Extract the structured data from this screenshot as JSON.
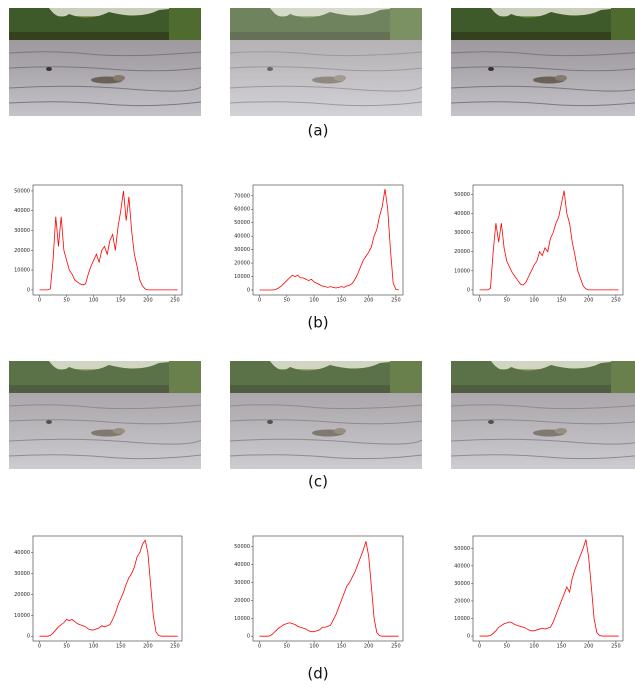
{
  "labels": [
    "(a)",
    "(b)",
    "(c)",
    "(d)"
  ],
  "chart_data": [
    {
      "type": "line",
      "color": "#ff0000",
      "x": [
        0,
        5,
        10,
        15,
        20,
        25,
        30,
        35,
        40,
        45,
        50,
        55,
        60,
        65,
        70,
        75,
        80,
        85,
        90,
        95,
        100,
        105,
        110,
        115,
        120,
        125,
        130,
        135,
        140,
        145,
        150,
        155,
        160,
        165,
        170,
        175,
        180,
        185,
        190,
        195,
        200,
        205,
        210,
        215,
        220,
        225,
        230,
        235,
        240,
        245,
        250,
        255
      ],
      "values": [
        0,
        0,
        0,
        0,
        500,
        15000,
        37000,
        22000,
        37000,
        20000,
        15000,
        10000,
        8000,
        5000,
        4000,
        3000,
        2500,
        3000,
        8000,
        12000,
        15000,
        18000,
        14000,
        20000,
        22000,
        18000,
        25000,
        28000,
        20000,
        32000,
        40000,
        50000,
        35000,
        47000,
        30000,
        18000,
        12000,
        5000,
        2000,
        500,
        0,
        0,
        0,
        0,
        0,
        0,
        0,
        0,
        0,
        0,
        0,
        0
      ],
      "xlim": [
        -12,
        263
      ],
      "xticks": [
        0,
        50,
        100,
        150,
        200,
        250
      ],
      "ylim": [
        -2600,
        53000
      ],
      "yticks": [
        0,
        10000,
        20000,
        30000,
        40000,
        50000
      ]
    },
    {
      "type": "line",
      "color": "#ff0000",
      "x": [
        0,
        5,
        10,
        15,
        20,
        25,
        30,
        35,
        40,
        45,
        50,
        55,
        60,
        65,
        70,
        75,
        80,
        85,
        90,
        95,
        100,
        105,
        110,
        115,
        120,
        125,
        130,
        135,
        140,
        145,
        150,
        155,
        160,
        165,
        170,
        175,
        180,
        185,
        190,
        195,
        200,
        205,
        210,
        215,
        220,
        225,
        230,
        235,
        240,
        245,
        250,
        255
      ],
      "values": [
        0,
        0,
        0,
        0,
        0,
        0,
        500,
        1500,
        3000,
        5000,
        7000,
        9000,
        11000,
        10000,
        11000,
        9000,
        9000,
        8000,
        7000,
        8000,
        6000,
        5000,
        4000,
        3000,
        2500,
        2000,
        2500,
        2000,
        1500,
        2000,
        2500,
        2000,
        3000,
        3500,
        5000,
        8000,
        12000,
        17000,
        22000,
        25000,
        28000,
        32000,
        40000,
        45000,
        55000,
        62000,
        75000,
        60000,
        30000,
        5000,
        500,
        0
      ],
      "xlim": [
        -12,
        263
      ],
      "xticks": [
        0,
        50,
        100,
        150,
        200,
        250
      ],
      "ylim": [
        -3700,
        78000
      ],
      "yticks": [
        0,
        10000,
        20000,
        30000,
        40000,
        50000,
        60000,
        70000
      ]
    },
    {
      "type": "line",
      "color": "#ff0000",
      "x": [
        0,
        5,
        10,
        15,
        20,
        25,
        30,
        35,
        40,
        45,
        50,
        55,
        60,
        65,
        70,
        75,
        80,
        85,
        90,
        95,
        100,
        105,
        110,
        115,
        120,
        125,
        130,
        135,
        140,
        145,
        150,
        155,
        160,
        165,
        170,
        175,
        180,
        185,
        190,
        195,
        200,
        205,
        210,
        215,
        220,
        225,
        230,
        235,
        240,
        245,
        250,
        255
      ],
      "values": [
        0,
        0,
        0,
        0,
        800,
        20000,
        35000,
        25000,
        35000,
        22000,
        15000,
        12000,
        9000,
        7000,
        5000,
        3000,
        2500,
        4000,
        7000,
        10000,
        13000,
        15000,
        20000,
        18000,
        22000,
        20000,
        27000,
        30000,
        35000,
        38000,
        45000,
        52000,
        40000,
        35000,
        25000,
        18000,
        10000,
        6000,
        2000,
        500,
        0,
        0,
        0,
        0,
        0,
        0,
        0,
        0,
        0,
        0,
        0,
        0
      ],
      "xlim": [
        -12,
        263
      ],
      "xticks": [
        0,
        50,
        100,
        150,
        200,
        250
      ],
      "ylim": [
        -2700,
        55000
      ],
      "yticks": [
        0,
        10000,
        20000,
        30000,
        40000,
        50000
      ]
    },
    {
      "type": "line",
      "color": "#ff0000",
      "x": [
        0,
        5,
        10,
        15,
        20,
        25,
        30,
        35,
        40,
        45,
        50,
        55,
        60,
        65,
        70,
        75,
        80,
        85,
        90,
        95,
        100,
        105,
        110,
        115,
        120,
        125,
        130,
        135,
        140,
        145,
        150,
        155,
        160,
        165,
        170,
        175,
        180,
        185,
        190,
        195,
        200,
        205,
        210,
        215,
        220,
        225,
        230,
        235,
        240,
        245,
        250,
        255
      ],
      "values": [
        0,
        0,
        0,
        0,
        300,
        1500,
        3000,
        4500,
        5500,
        6500,
        8000,
        7500,
        8000,
        7000,
        6000,
        5500,
        5000,
        4500,
        3500,
        3000,
        3000,
        3500,
        4000,
        5000,
        4500,
        5000,
        5500,
        8000,
        11000,
        15000,
        18000,
        21000,
        25000,
        28000,
        30000,
        33000,
        38000,
        40000,
        44000,
        46000,
        40000,
        25000,
        10000,
        2000,
        300,
        0,
        0,
        0,
        0,
        0,
        0,
        0
      ],
      "xlim": [
        -12,
        263
      ],
      "xticks": [
        0,
        50,
        100,
        150,
        200,
        250
      ],
      "ylim": [
        -2300,
        48000
      ],
      "yticks": [
        0,
        10000,
        20000,
        30000,
        40000
      ]
    },
    {
      "type": "line",
      "color": "#ff0000",
      "x": [
        0,
        5,
        10,
        15,
        20,
        25,
        30,
        35,
        40,
        45,
        50,
        55,
        60,
        65,
        70,
        75,
        80,
        85,
        90,
        95,
        100,
        105,
        110,
        115,
        120,
        125,
        130,
        135,
        140,
        145,
        150,
        155,
        160,
        165,
        170,
        175,
        180,
        185,
        190,
        195,
        200,
        205,
        210,
        215,
        220,
        225,
        230,
        235,
        240,
        245,
        250,
        255
      ],
      "values": [
        0,
        0,
        0,
        0,
        300,
        1500,
        3000,
        4500,
        5500,
        6500,
        7000,
        7500,
        7000,
        6500,
        5500,
        5000,
        4500,
        4000,
        3000,
        2500,
        2500,
        3000,
        3500,
        5000,
        5000,
        5500,
        6000,
        9000,
        12000,
        16000,
        20000,
        24000,
        28000,
        30000,
        33000,
        36000,
        40000,
        44000,
        48000,
        53000,
        45000,
        28000,
        10000,
        2000,
        300,
        0,
        0,
        0,
        0,
        0,
        0,
        0
      ],
      "xlim": [
        -12,
        263
      ],
      "xticks": [
        0,
        50,
        100,
        150,
        200,
        250
      ],
      "ylim": [
        -2700,
        56000
      ],
      "yticks": [
        0,
        10000,
        20000,
        30000,
        40000,
        50000
      ]
    },
    {
      "type": "line",
      "color": "#ff0000",
      "x": [
        0,
        5,
        10,
        15,
        20,
        25,
        30,
        35,
        40,
        45,
        50,
        55,
        60,
        65,
        70,
        75,
        80,
        85,
        90,
        95,
        100,
        105,
        110,
        115,
        120,
        125,
        130,
        135,
        140,
        145,
        150,
        155,
        160,
        165,
        170,
        175,
        180,
        185,
        190,
        195,
        200,
        205,
        210,
        215,
        220,
        225,
        230,
        235,
        240,
        245,
        250,
        255
      ],
      "values": [
        0,
        0,
        0,
        0,
        300,
        1500,
        3000,
        5000,
        6000,
        7000,
        7500,
        8000,
        7500,
        6500,
        6000,
        5500,
        5000,
        4500,
        3500,
        3000,
        3000,
        3500,
        4000,
        4500,
        4000,
        4500,
        5000,
        8000,
        12000,
        16000,
        20000,
        24000,
        28000,
        25000,
        33000,
        38000,
        42000,
        46000,
        50000,
        55000,
        45000,
        28000,
        10000,
        2000,
        300,
        0,
        0,
        0,
        0,
        0,
        0,
        0
      ],
      "xlim": [
        -12,
        263
      ],
      "xticks": [
        0,
        50,
        100,
        150,
        200,
        250
      ],
      "ylim": [
        -2800,
        57000
      ],
      "yticks": [
        0,
        10000,
        20000,
        30000,
        40000,
        50000
      ]
    }
  ]
}
